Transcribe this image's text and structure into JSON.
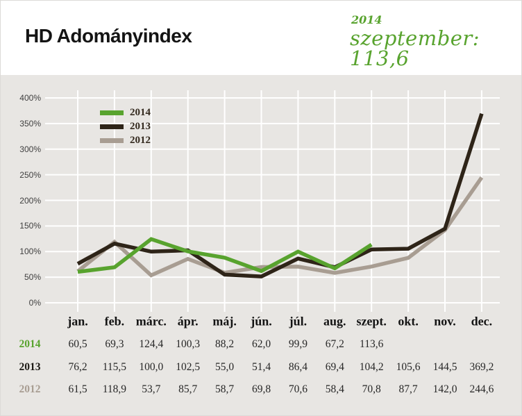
{
  "header": {
    "title": "HD Adományindex",
    "year": "2014",
    "subtitle": "szeptember: 113,6"
  },
  "colors": {
    "green": "#58a32e",
    "dark": "#2e2418",
    "taupe": "#a89d92",
    "page_bg": "#e8e6e3",
    "header_bg": "#ffffff",
    "grid": "#ffffff"
  },
  "chart_data": {
    "type": "line",
    "title": "HD Adományindex",
    "categories": [
      "jan.",
      "feb.",
      "márc.",
      "ápr.",
      "máj.",
      "jún.",
      "júl.",
      "aug.",
      "szept.",
      "okt.",
      "nov.",
      "dec."
    ],
    "y_ticks": [
      "400%",
      "350%",
      "300%",
      "250%",
      "200%",
      "150%",
      "100%",
      "50%",
      "0%"
    ],
    "ylim": [
      0,
      400
    ],
    "grid": true,
    "legend_position": "top-left",
    "series": [
      {
        "name": "2014",
        "color": "#58a32e",
        "values": [
          60.5,
          69.3,
          124.4,
          100.3,
          88.2,
          62.0,
          99.9,
          67.2,
          113.6
        ]
      },
      {
        "name": "2013",
        "color": "#2e2418",
        "values": [
          76.2,
          115.5,
          100.0,
          102.5,
          55.0,
          51.4,
          86.4,
          69.4,
          104.2,
          105.6,
          144.5,
          369.2
        ]
      },
      {
        "name": "2012",
        "color": "#a89d92",
        "values": [
          61.5,
          118.9,
          53.7,
          85.7,
          58.7,
          69.8,
          70.6,
          58.4,
          70.8,
          87.7,
          142.0,
          244.6
        ]
      }
    ]
  },
  "table": {
    "rows": [
      {
        "label": "2014",
        "color": "#58a32e",
        "values": [
          "60,5",
          "69,3",
          "124,4",
          "100,3",
          "88,2",
          "62,0",
          "99,9",
          "67,2",
          "113,6",
          "",
          "",
          ""
        ]
      },
      {
        "label": "2013",
        "color": "#1d1a15",
        "values": [
          "76,2",
          "115,5",
          "100,0",
          "102,5",
          "55,0",
          "51,4",
          "86,4",
          "69,4",
          "104,2",
          "105,6",
          "144,5",
          "369,2"
        ]
      },
      {
        "label": "2012",
        "color": "#a89d92",
        "values": [
          "61,5",
          "118,9",
          "53,7",
          "85,7",
          "58,7",
          "69,8",
          "70,6",
          "58,4",
          "70,8",
          "87,7",
          "142,0",
          "244,6"
        ]
      }
    ]
  }
}
